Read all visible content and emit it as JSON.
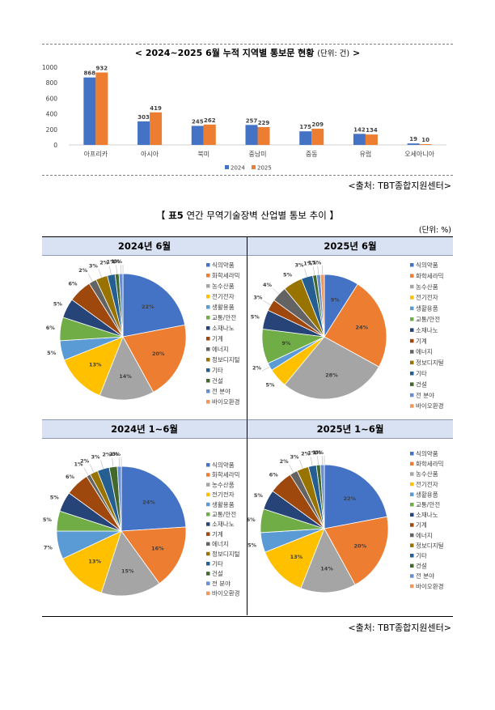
{
  "bar_section": {
    "title": "<  2024~2025  6월  누적  지역별  통보문  현황",
    "unit": "(단위: 건)",
    "title_end": ">",
    "source": "<출처: TBT종합지원센터>"
  },
  "pie_section": {
    "title_prefix": "【 ",
    "title_bold": "표5",
    "title_text": " 연간 무역기술장벽 산업별 통보 추이 】",
    "unit": "(단위: %)",
    "source": "<출처: TBT종합지원센터>",
    "headers": [
      "2024년  6월",
      "2025년  6월",
      "2024년  1~6월",
      "2025년  1~6월"
    ]
  },
  "colors": {
    "series_2024": "#4472c4",
    "series_2025": "#ed7d31",
    "pie": [
      "#4472c4",
      "#ed7d31",
      "#a5a5a5",
      "#ffc000",
      "#5b9bd5",
      "#70ad47",
      "#264478",
      "#9e480e",
      "#636363",
      "#997300",
      "#255e91",
      "#43682b",
      "#698ed0",
      "#f1975a"
    ]
  },
  "chart_data": [
    {
      "type": "bar",
      "categories": [
        "아프리카",
        "아시아",
        "북미",
        "중남미",
        "중동",
        "유럽",
        "오세아니아"
      ],
      "series": [
        {
          "name": "2024",
          "values": [
            868,
            303,
            245,
            257,
            175,
            142,
            19
          ]
        },
        {
          "name": "2025",
          "values": [
            932,
            419,
            262,
            229,
            209,
            134,
            10
          ]
        }
      ],
      "yticks": [
        0,
        200,
        400,
        600,
        800,
        1000
      ],
      "ylim": [
        0,
        1000
      ],
      "legend": "bottom"
    },
    {
      "type": "pie",
      "title": "2024년  6월",
      "categories": [
        "식의약품",
        "화학세라믹",
        "농수산품",
        "전기전자",
        "생활용품",
        "교통/안전",
        "소재나노",
        "기계",
        "에너지",
        "정보디지털",
        "기타",
        "건설",
        "전 분야",
        "바이오환경"
      ],
      "values": [
        22,
        20,
        14,
        13,
        5,
        6,
        5,
        6,
        2,
        3,
        2,
        1,
        1,
        0
      ],
      "labels": [
        "22%",
        "20%",
        "14%",
        "13%",
        "5%",
        "6%",
        "5%",
        "6%",
        "2%",
        "3%",
        "2%",
        "1%",
        "1%",
        "0%"
      ]
    },
    {
      "type": "pie",
      "title": "2025년  6월",
      "categories": [
        "식의약품",
        "화학세라믹",
        "농수산품",
        "전기전자",
        "생활용품",
        "교통/안전",
        "소재나노",
        "기계",
        "에너지",
        "정보디지털",
        "기타",
        "건설",
        "전 분야",
        "바이오환경"
      ],
      "values": [
        9,
        24,
        28,
        5,
        2,
        9,
        5,
        3,
        4,
        5,
        3,
        1,
        1,
        1
      ],
      "labels": [
        "9%",
        "24%",
        "28%",
        "5%",
        "2%",
        "9%",
        "5%",
        "3%",
        "4%",
        "5%",
        "3%",
        "1%",
        "1%",
        "1%"
      ]
    },
    {
      "type": "pie",
      "title": "2024년  1~6월",
      "categories": [
        "식의약품",
        "화학세라믹",
        "농수산품",
        "전기전자",
        "생활용품",
        "교통/안전",
        "소재나노",
        "기계",
        "에너지",
        "정보디지털",
        "기타",
        "건설",
        "전 분야",
        "바이오환경"
      ],
      "values": [
        24,
        16,
        15,
        13,
        7,
        5,
        5,
        6,
        1,
        2,
        3,
        2,
        1,
        0
      ],
      "labels": [
        "24%",
        "16%",
        "15%",
        "13%",
        "7%",
        "5%",
        "5%",
        "6%",
        "1%",
        "2%",
        "3%",
        "2%",
        "1%",
        "0%"
      ]
    },
    {
      "type": "pie",
      "title": "2025년  1~6월",
      "categories": [
        "식의약품",
        "화학세라믹",
        "농수산품",
        "전기전자",
        "생활용품",
        "교통/안전",
        "소재나노",
        "기계",
        "에너지",
        "정보디지털",
        "기타",
        "건설",
        "전 분야",
        "바이오환경"
      ],
      "values": [
        22,
        20,
        14,
        13,
        5,
        6,
        5,
        6,
        2,
        3,
        2,
        1,
        1,
        0
      ],
      "labels": [
        "22%",
        "20%",
        "14%",
        "13%",
        "5%",
        "6%",
        "5%",
        "6%",
        "2%",
        "3%",
        "2%",
        "1%",
        "1%",
        "0%"
      ]
    }
  ]
}
